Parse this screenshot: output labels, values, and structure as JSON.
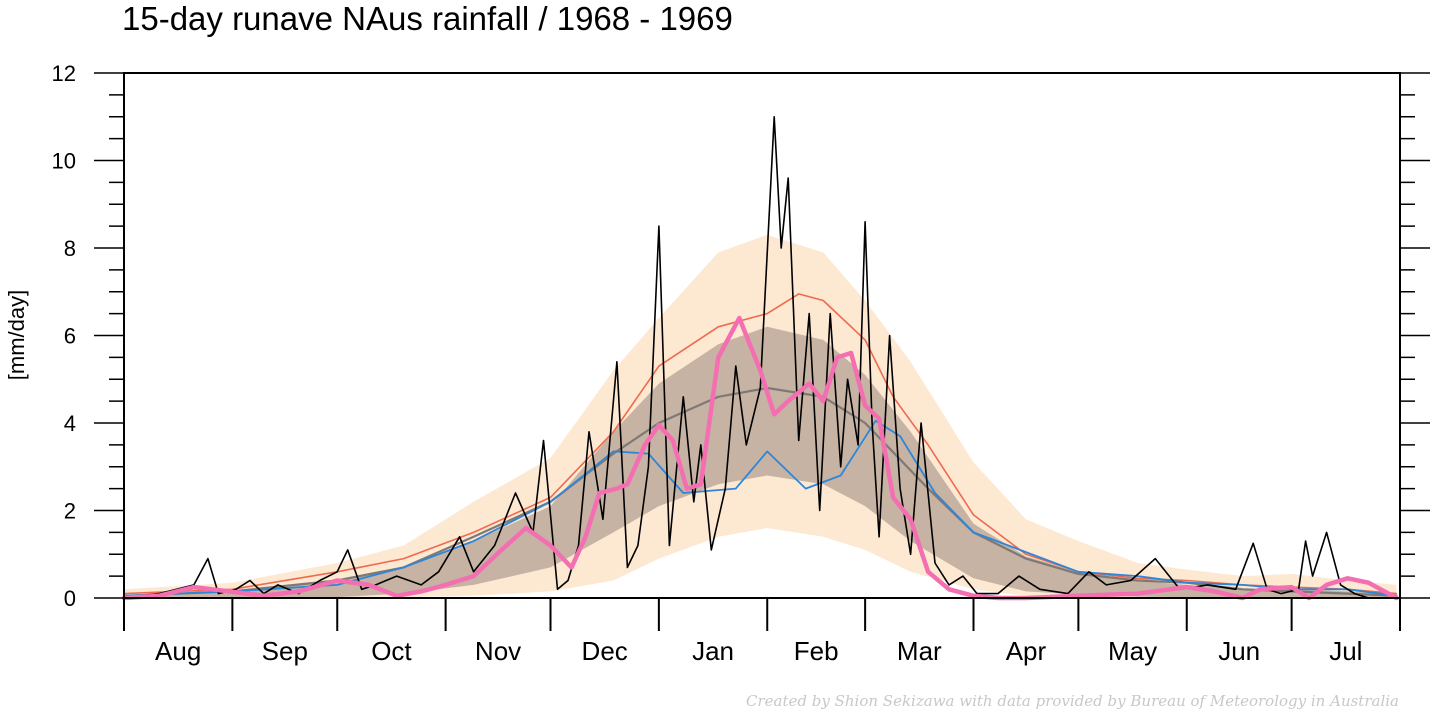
{
  "chart_data": {
    "type": "line",
    "title": "15-day runave NAus rainfall  /  1968 - 1969",
    "ylabel": "[mm/day]",
    "xlabel": "",
    "ylim": [
      0,
      12
    ],
    "yticks": [
      0,
      2,
      4,
      6,
      8,
      10,
      12
    ],
    "yticklabels": [
      "0",
      "2",
      "4",
      "6",
      "8",
      "10",
      "12"
    ],
    "y_minor_step": 0.5,
    "days": 365,
    "month_starts": [
      0,
      31,
      61,
      92,
      122,
      153,
      184,
      212,
      243,
      273,
      304,
      334
    ],
    "months": [
      "Aug",
      "Sep",
      "Oct",
      "Nov",
      "Dec",
      "Jan",
      "Feb",
      "Mar",
      "Apr",
      "May",
      "Jun",
      "Jul"
    ],
    "grid": false,
    "colors": {
      "outer_band": "#fde8d2",
      "inner_band": "#c6b3a3",
      "mean": "#ef6a4e",
      "median": "#7f7875",
      "prev_year": "#2f86d8",
      "daily": "#000000",
      "runave": "#f46fb1"
    },
    "series": [
      {
        "key": "outer_band",
        "x": [
          0,
          31,
          61,
          80,
          100,
          122,
          140,
          153,
          170,
          184,
          200,
          212,
          225,
          243,
          258,
          273,
          290,
          304,
          320,
          334,
          350,
          364
        ],
        "upper": [
          0.2,
          0.35,
          0.8,
          1.2,
          2.2,
          3.2,
          5.2,
          6.4,
          7.9,
          8.3,
          7.9,
          6.8,
          5.4,
          3.1,
          1.8,
          1.3,
          0.8,
          0.65,
          0.5,
          0.55,
          0.4,
          0.3
        ],
        "lower": [
          0,
          0,
          0,
          0.02,
          0.05,
          0.15,
          0.4,
          0.9,
          1.4,
          1.6,
          1.4,
          1.1,
          0.6,
          0.2,
          0.05,
          0.02,
          0,
          0,
          0,
          0,
          0,
          0
        ]
      },
      {
        "key": "inner_band",
        "x": [
          0,
          31,
          61,
          80,
          100,
          122,
          140,
          153,
          170,
          184,
          200,
          212,
          225,
          243,
          258,
          273,
          290,
          304,
          320,
          334,
          350,
          364
        ],
        "upper": [
          0.05,
          0.15,
          0.4,
          0.7,
          1.3,
          2.1,
          3.8,
          4.9,
          5.8,
          6.2,
          5.9,
          5.1,
          3.8,
          1.7,
          0.95,
          0.6,
          0.4,
          0.3,
          0.2,
          0.2,
          0.15,
          0.1
        ],
        "lower": [
          0,
          0,
          0.02,
          0.1,
          0.3,
          0.7,
          1.5,
          2.1,
          2.6,
          2.8,
          2.6,
          2.1,
          1.3,
          0.45,
          0.15,
          0.08,
          0.03,
          0.02,
          0,
          0,
          0,
          0
        ]
      },
      {
        "key": "mean",
        "x": [
          0,
          31,
          61,
          80,
          100,
          122,
          140,
          153,
          170,
          184,
          193,
          200,
          212,
          220,
          230,
          243,
          258,
          273,
          290,
          304,
          320,
          334,
          350,
          364
        ],
        "y": [
          0.1,
          0.2,
          0.6,
          0.9,
          1.5,
          2.3,
          3.8,
          5.3,
          6.2,
          6.5,
          6.95,
          6.8,
          5.9,
          4.6,
          3.5,
          1.9,
          1.0,
          0.6,
          0.45,
          0.4,
          0.3,
          0.25,
          0.2,
          0.1
        ]
      },
      {
        "key": "median",
        "x": [
          0,
          31,
          61,
          80,
          100,
          122,
          140,
          153,
          170,
          184,
          200,
          212,
          230,
          243,
          258,
          273,
          290,
          304,
          320,
          334,
          350,
          364
        ],
        "y": [
          0.05,
          0.15,
          0.4,
          0.7,
          1.4,
          2.2,
          3.3,
          4.0,
          4.6,
          4.8,
          4.6,
          4.0,
          2.5,
          1.5,
          0.9,
          0.55,
          0.4,
          0.35,
          0.2,
          0.15,
          0.1,
          0.05
        ]
      },
      {
        "key": "prev_year",
        "x": [
          0,
          31,
          61,
          80,
          100,
          122,
          140,
          150,
          160,
          175,
          184,
          195,
          205,
          215,
          222,
          232,
          243,
          258,
          273,
          290,
          304,
          320,
          334,
          350,
          364
        ],
        "y": [
          0.05,
          0.15,
          0.3,
          0.7,
          1.3,
          2.2,
          3.35,
          3.3,
          2.4,
          2.5,
          3.35,
          2.5,
          2.8,
          4.05,
          3.7,
          2.4,
          1.5,
          1.05,
          0.6,
          0.5,
          0.35,
          0.3,
          0.2,
          0.2,
          0.05
        ]
      },
      {
        "key": "daily",
        "x": [
          0,
          10,
          20,
          24,
          27,
          32,
          36,
          40,
          44,
          50,
          56,
          61,
          64,
          68,
          72,
          78,
          85,
          90,
          96,
          100,
          106,
          112,
          117,
          120,
          124,
          127,
          130,
          133,
          137,
          141,
          144,
          147,
          150,
          153,
          156,
          160,
          163,
          165,
          168,
          172,
          175,
          178,
          182,
          186,
          188,
          190,
          193,
          196,
          199,
          202,
          205,
          207,
          210,
          212,
          214,
          216,
          219,
          222,
          225,
          228,
          232,
          236,
          240,
          244,
          250,
          256,
          262,
          270,
          276,
          281,
          288,
          295,
          302,
          310,
          318,
          323,
          327,
          331,
          336,
          338,
          340,
          344,
          348,
          352,
          356,
          360,
          364
        ],
        "y": [
          0,
          0.1,
          0.3,
          0.9,
          0.1,
          0.2,
          0.4,
          0.1,
          0.3,
          0.1,
          0.4,
          0.6,
          1.1,
          0.2,
          0.3,
          0.5,
          0.3,
          0.6,
          1.4,
          0.6,
          1.2,
          2.4,
          1.5,
          3.6,
          0.2,
          0.4,
          1.2,
          3.8,
          1.8,
          5.4,
          0.7,
          1.2,
          3.0,
          8.5,
          1.2,
          4.6,
          2.2,
          3.5,
          1.1,
          2.5,
          5.3,
          3.5,
          4.8,
          11.0,
          8.0,
          9.6,
          3.6,
          6.5,
          2.0,
          6.5,
          3.0,
          5.0,
          3.5,
          8.6,
          4.0,
          1.4,
          6.0,
          2.5,
          1.0,
          4.0,
          0.8,
          0.3,
          0.5,
          0.1,
          0.1,
          0.5,
          0.2,
          0.1,
          0.6,
          0.3,
          0.4,
          0.9,
          0.2,
          0.3,
          0.2,
          1.25,
          0.2,
          0.1,
          0.2,
          1.3,
          0.5,
          1.5,
          0.3,
          0.1,
          0,
          0,
          0
        ]
      },
      {
        "key": "runave",
        "x": [
          0,
          10,
          20,
          30,
          40,
          50,
          61,
          70,
          78,
          85,
          92,
          100,
          108,
          115,
          122,
          128,
          132,
          136,
          141,
          144,
          149,
          153,
          157,
          161,
          165,
          170,
          176,
          182,
          186,
          190,
          196,
          200,
          204,
          208,
          212,
          216,
          220,
          225,
          230,
          236,
          243,
          250,
          258,
          273,
          290,
          304,
          312,
          320,
          325,
          334,
          339,
          344,
          350,
          356,
          364
        ],
        "y": [
          0,
          0.05,
          0.25,
          0.15,
          0.05,
          0.15,
          0.4,
          0.3,
          0.05,
          0.15,
          0.3,
          0.5,
          1.1,
          1.6,
          1.2,
          0.7,
          1.4,
          2.4,
          2.5,
          2.6,
          3.5,
          3.95,
          3.6,
          2.5,
          2.6,
          5.5,
          6.4,
          5.2,
          4.2,
          4.5,
          4.9,
          4.5,
          5.5,
          5.6,
          4.4,
          4.1,
          2.3,
          1.8,
          0.6,
          0.2,
          0.05,
          0,
          0,
          0.05,
          0.1,
          0.25,
          0.15,
          0,
          0.2,
          0.25,
          0,
          0.3,
          0.45,
          0.35,
          0
        ]
      }
    ]
  },
  "credit": "Created by Shion Sekizawa with data provided by Bureau of Meteorology in Australia"
}
